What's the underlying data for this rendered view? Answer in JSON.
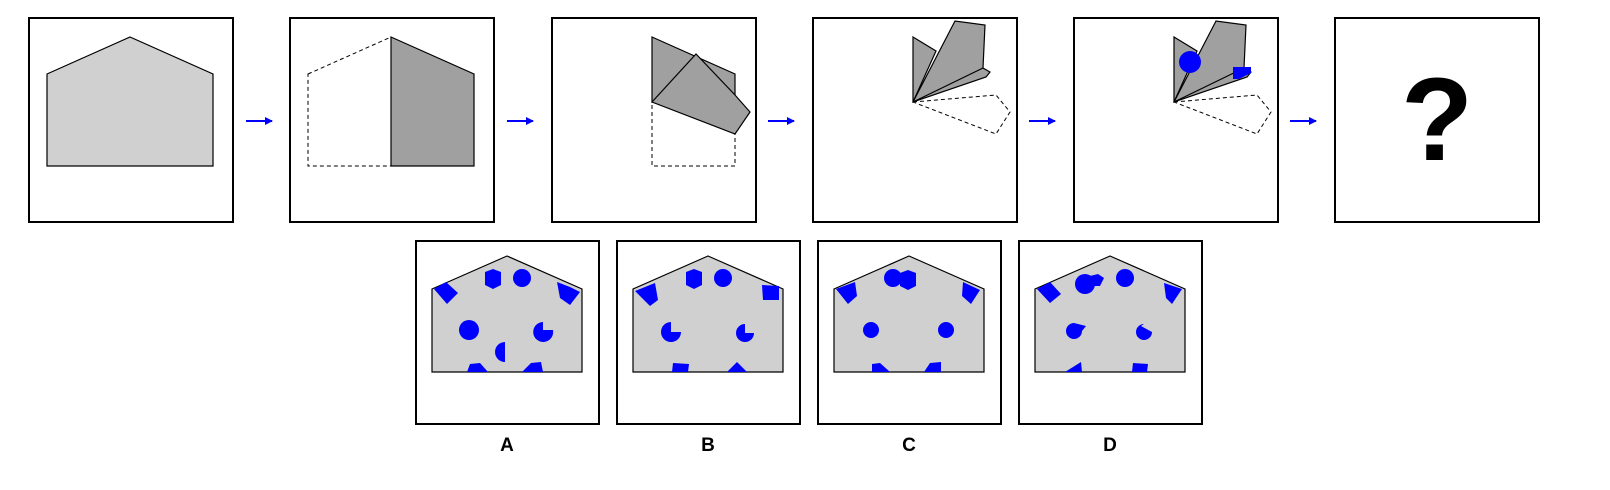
{
  "puzzle": {
    "question_mark": "?",
    "options": [
      {
        "label": "A"
      },
      {
        "label": "B"
      },
      {
        "label": "C"
      },
      {
        "label": "D"
      }
    ]
  },
  "colors": {
    "paper": "#d0d0d0",
    "folded_paper": "#a0a0a0",
    "hole": "#0000ff",
    "arrow": "#0000ff",
    "frame": "#000000"
  }
}
